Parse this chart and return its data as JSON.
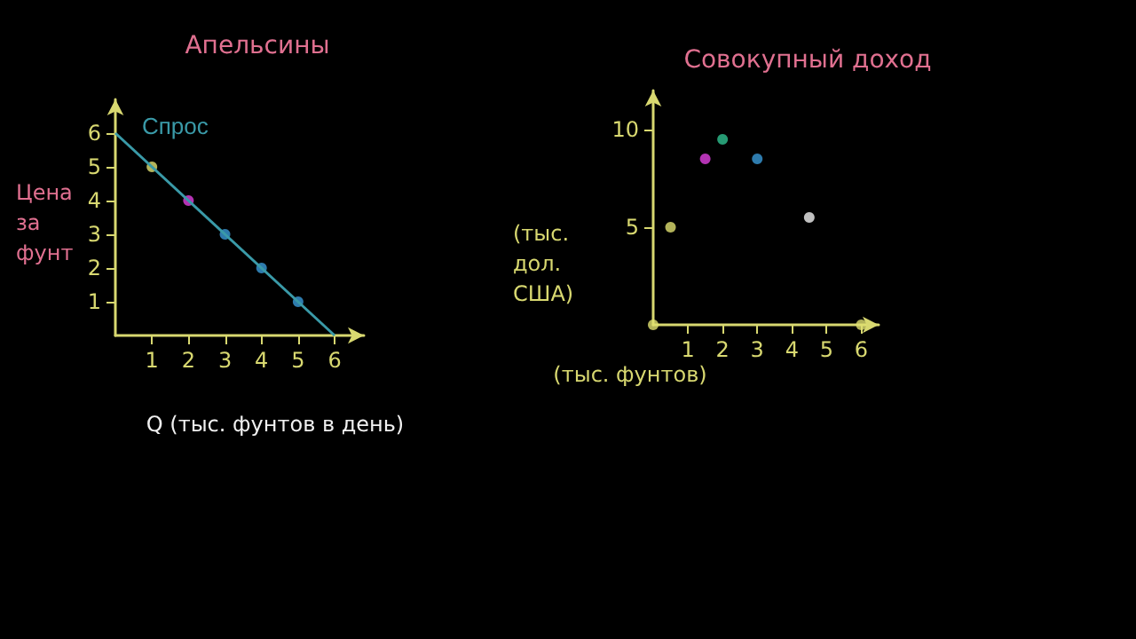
{
  "chart_data": [
    {
      "type": "line",
      "title": "Апельсины",
      "xlabel": "Q (тыс. фунтов в день)",
      "ylabel": "Цена за фунт",
      "xlim": [
        0,
        6.8
      ],
      "ylim": [
        0,
        7
      ],
      "xticks": [
        1,
        2,
        3,
        4,
        5,
        6
      ],
      "yticks": [
        1,
        2,
        3,
        4,
        5,
        6
      ],
      "series": [
        {
          "name": "Спрос",
          "marker": "none",
          "color": "#3a9aa8",
          "x": [
            0,
            6
          ],
          "values": [
            6,
            0
          ]
        },
        {
          "type": "scatter",
          "marker": "circle",
          "colors": [
            "#e0e070",
            "#e040e0",
            "#3a9ad8",
            "#3a9ad8",
            "#3a9ad8"
          ],
          "x": [
            1,
            2,
            3,
            4,
            5
          ],
          "values": [
            5,
            4,
            3,
            2,
            1
          ]
        }
      ]
    },
    {
      "type": "scatter",
      "title": "Совокупный доход",
      "xlabel": "(тыс. фунтов)",
      "ylabel": "(тыс. дол. США)",
      "xlim": [
        0,
        6.5
      ],
      "ylim": [
        0,
        12
      ],
      "xticks": [
        1,
        2,
        3,
        4,
        5,
        6
      ],
      "yticks": [
        5,
        10
      ],
      "series": [
        {
          "marker": "circle",
          "colors": [
            "#e0e070",
            "#e0e070",
            "#e040e0",
            "#30c090",
            "#3a9ad8",
            "#f0f0f0",
            "#e0e070"
          ],
          "x": [
            0,
            0.5,
            1.5,
            2,
            3,
            4.5,
            6
          ],
          "values": [
            0,
            5,
            8.5,
            9.5,
            8.5,
            5.5,
            0
          ]
        }
      ]
    }
  ]
}
